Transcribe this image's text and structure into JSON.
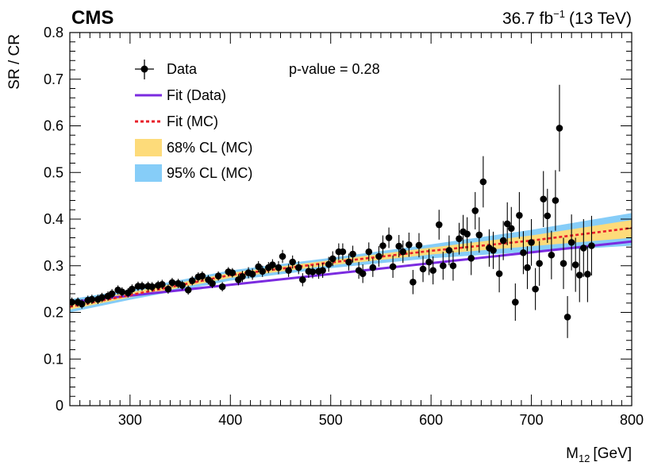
{
  "chart_data": {
    "type": "scatter",
    "experiment": "CMS",
    "lumi_label": "36.7 fb",
    "lumi_exp": "−1",
    "energy_label": "(13 TeV)",
    "xlabel_main": "M",
    "xlabel_sub": "12",
    "xlabel_unit": "[GeV]",
    "ylabel": "SR / CR",
    "xlim": [
      240,
      800
    ],
    "ylim": [
      0,
      0.8
    ],
    "xticks": [
      300,
      400,
      500,
      600,
      700,
      800
    ],
    "yticks": [
      0,
      0.1,
      0.2,
      0.3,
      0.4,
      0.5,
      0.6,
      0.7,
      0.8
    ],
    "pvalue_text": "p-value = 0.28",
    "legend": {
      "data": "Data",
      "fit_data": "Fit (Data)",
      "fit_mc": "Fit (MC)",
      "cl68": "68% CL (MC)",
      "cl95": "95% CL (MC)"
    },
    "colors": {
      "fit_data": "#7b2be0",
      "fit_mc": "#e8202a",
      "cl68": "#fddb7a",
      "cl95": "#86cdf8",
      "data": "#000000"
    },
    "fit_data": {
      "x": [
        240,
        800
      ],
      "y": [
        0.222,
        0.352
      ]
    },
    "fit_mc": {
      "x": [
        240,
        300,
        400,
        500,
        600,
        700,
        800
      ],
      "y": [
        0.212,
        0.237,
        0.28,
        0.307,
        0.332,
        0.354,
        0.381
      ]
    },
    "band95": {
      "x": [
        240,
        300,
        400,
        500,
        600,
        700,
        800
      ],
      "lo": [
        0.2,
        0.227,
        0.268,
        0.295,
        0.316,
        0.33,
        0.343
      ],
      "hi": [
        0.228,
        0.249,
        0.29,
        0.317,
        0.346,
        0.377,
        0.413
      ]
    },
    "band68": {
      "x": [
        240,
        300,
        400,
        500,
        600,
        700,
        800
      ],
      "lo": [
        0.206,
        0.232,
        0.274,
        0.301,
        0.324,
        0.342,
        0.36
      ],
      "hi": [
        0.222,
        0.243,
        0.285,
        0.312,
        0.339,
        0.365,
        0.398
      ]
    },
    "points": [
      {
        "x": 242,
        "y": 0.222,
        "e": 0.01
      },
      {
        "x": 248,
        "y": 0.222,
        "e": 0.01
      },
      {
        "x": 252,
        "y": 0.218,
        "e": 0.01
      },
      {
        "x": 258,
        "y": 0.226,
        "e": 0.01
      },
      {
        "x": 262,
        "y": 0.228,
        "e": 0.01
      },
      {
        "x": 268,
        "y": 0.228,
        "e": 0.01
      },
      {
        "x": 272,
        "y": 0.232,
        "e": 0.01
      },
      {
        "x": 278,
        "y": 0.235,
        "e": 0.01
      },
      {
        "x": 282,
        "y": 0.24,
        "e": 0.01
      },
      {
        "x": 288,
        "y": 0.248,
        "e": 0.01
      },
      {
        "x": 292,
        "y": 0.244,
        "e": 0.01
      },
      {
        "x": 298,
        "y": 0.242,
        "e": 0.01
      },
      {
        "x": 302,
        "y": 0.25,
        "e": 0.01
      },
      {
        "x": 308,
        "y": 0.256,
        "e": 0.01
      },
      {
        "x": 312,
        "y": 0.256,
        "e": 0.01
      },
      {
        "x": 318,
        "y": 0.256,
        "e": 0.01
      },
      {
        "x": 322,
        "y": 0.255,
        "e": 0.01
      },
      {
        "x": 328,
        "y": 0.258,
        "e": 0.01
      },
      {
        "x": 332,
        "y": 0.26,
        "e": 0.01
      },
      {
        "x": 338,
        "y": 0.25,
        "e": 0.01
      },
      {
        "x": 342,
        "y": 0.264,
        "e": 0.01
      },
      {
        "x": 348,
        "y": 0.262,
        "e": 0.01
      },
      {
        "x": 352,
        "y": 0.258,
        "e": 0.01
      },
      {
        "x": 358,
        "y": 0.248,
        "e": 0.01
      },
      {
        "x": 362,
        "y": 0.268,
        "e": 0.01
      },
      {
        "x": 368,
        "y": 0.276,
        "e": 0.01
      },
      {
        "x": 372,
        "y": 0.278,
        "e": 0.01
      },
      {
        "x": 378,
        "y": 0.27,
        "e": 0.01
      },
      {
        "x": 382,
        "y": 0.262,
        "e": 0.01
      },
      {
        "x": 388,
        "y": 0.278,
        "e": 0.01
      },
      {
        "x": 392,
        "y": 0.255,
        "e": 0.01
      },
      {
        "x": 398,
        "y": 0.287,
        "e": 0.01
      },
      {
        "x": 402,
        "y": 0.285,
        "e": 0.01
      },
      {
        "x": 408,
        "y": 0.27,
        "e": 0.012
      },
      {
        "x": 412,
        "y": 0.277,
        "e": 0.012
      },
      {
        "x": 418,
        "y": 0.285,
        "e": 0.012
      },
      {
        "x": 422,
        "y": 0.282,
        "e": 0.012
      },
      {
        "x": 428,
        "y": 0.298,
        "e": 0.012
      },
      {
        "x": 432,
        "y": 0.288,
        "e": 0.012
      },
      {
        "x": 438,
        "y": 0.296,
        "e": 0.012
      },
      {
        "x": 442,
        "y": 0.302,
        "e": 0.012
      },
      {
        "x": 448,
        "y": 0.296,
        "e": 0.014
      },
      {
        "x": 452,
        "y": 0.32,
        "e": 0.014
      },
      {
        "x": 458,
        "y": 0.29,
        "e": 0.014
      },
      {
        "x": 462,
        "y": 0.308,
        "e": 0.014
      },
      {
        "x": 468,
        "y": 0.296,
        "e": 0.014
      },
      {
        "x": 472,
        "y": 0.27,
        "e": 0.014
      },
      {
        "x": 478,
        "y": 0.288,
        "e": 0.014
      },
      {
        "x": 482,
        "y": 0.287,
        "e": 0.014
      },
      {
        "x": 488,
        "y": 0.288,
        "e": 0.016
      },
      {
        "x": 492,
        "y": 0.29,
        "e": 0.016
      },
      {
        "x": 498,
        "y": 0.303,
        "e": 0.016
      },
      {
        "x": 502,
        "y": 0.315,
        "e": 0.016
      },
      {
        "x": 508,
        "y": 0.33,
        "e": 0.018
      },
      {
        "x": 512,
        "y": 0.33,
        "e": 0.018
      },
      {
        "x": 518,
        "y": 0.308,
        "e": 0.018
      },
      {
        "x": 522,
        "y": 0.325,
        "e": 0.018
      },
      {
        "x": 528,
        "y": 0.29,
        "e": 0.018
      },
      {
        "x": 532,
        "y": 0.283,
        "e": 0.02
      },
      {
        "x": 538,
        "y": 0.33,
        "e": 0.02
      },
      {
        "x": 542,
        "y": 0.296,
        "e": 0.02
      },
      {
        "x": 548,
        "y": 0.32,
        "e": 0.022
      },
      {
        "x": 552,
        "y": 0.343,
        "e": 0.022
      },
      {
        "x": 558,
        "y": 0.36,
        "e": 0.022
      },
      {
        "x": 562,
        "y": 0.298,
        "e": 0.024
      },
      {
        "x": 568,
        "y": 0.342,
        "e": 0.024
      },
      {
        "x": 572,
        "y": 0.33,
        "e": 0.024
      },
      {
        "x": 578,
        "y": 0.345,
        "e": 0.026
      },
      {
        "x": 582,
        "y": 0.265,
        "e": 0.026
      },
      {
        "x": 588,
        "y": 0.344,
        "e": 0.026
      },
      {
        "x": 592,
        "y": 0.293,
        "e": 0.028
      },
      {
        "x": 598,
        "y": 0.308,
        "e": 0.028
      },
      {
        "x": 602,
        "y": 0.29,
        "e": 0.03
      },
      {
        "x": 608,
        "y": 0.388,
        "e": 0.032
      },
      {
        "x": 612,
        "y": 0.3,
        "e": 0.03
      },
      {
        "x": 618,
        "y": 0.333,
        "e": 0.032
      },
      {
        "x": 622,
        "y": 0.3,
        "e": 0.032
      },
      {
        "x": 628,
        "y": 0.358,
        "e": 0.034
      },
      {
        "x": 632,
        "y": 0.373,
        "e": 0.036
      },
      {
        "x": 636,
        "y": 0.368,
        "e": 0.036
      },
      {
        "x": 640,
        "y": 0.316,
        "e": 0.036
      },
      {
        "x": 644,
        "y": 0.418,
        "e": 0.04
      },
      {
        "x": 648,
        "y": 0.366,
        "e": 0.038
      },
      {
        "x": 652,
        "y": 0.48,
        "e": 0.055
      },
      {
        "x": 658,
        "y": 0.338,
        "e": 0.04
      },
      {
        "x": 662,
        "y": 0.333,
        "e": 0.04
      },
      {
        "x": 668,
        "y": 0.283,
        "e": 0.04
      },
      {
        "x": 672,
        "y": 0.354,
        "e": 0.042
      },
      {
        "x": 676,
        "y": 0.39,
        "e": 0.046
      },
      {
        "x": 680,
        "y": 0.38,
        "e": 0.046
      },
      {
        "x": 684,
        "y": 0.222,
        "e": 0.04
      },
      {
        "x": 688,
        "y": 0.408,
        "e": 0.05
      },
      {
        "x": 692,
        "y": 0.328,
        "e": 0.046
      },
      {
        "x": 696,
        "y": 0.296,
        "e": 0.046
      },
      {
        "x": 700,
        "y": 0.35,
        "e": 0.05
      },
      {
        "x": 704,
        "y": 0.25,
        "e": 0.045
      },
      {
        "x": 708,
        "y": 0.305,
        "e": 0.048
      },
      {
        "x": 712,
        "y": 0.443,
        "e": 0.06
      },
      {
        "x": 716,
        "y": 0.407,
        "e": 0.058
      },
      {
        "x": 720,
        "y": 0.323,
        "e": 0.052
      },
      {
        "x": 724,
        "y": 0.44,
        "e": 0.065
      },
      {
        "x": 728,
        "y": 0.595,
        "e": 0.093
      },
      {
        "x": 732,
        "y": 0.305,
        "e": 0.055
      },
      {
        "x": 736,
        "y": 0.19,
        "e": 0.045
      },
      {
        "x": 740,
        "y": 0.35,
        "e": 0.06
      },
      {
        "x": 744,
        "y": 0.302,
        "e": 0.058
      },
      {
        "x": 748,
        "y": 0.28,
        "e": 0.058
      },
      {
        "x": 752,
        "y": 0.338,
        "e": 0.062
      },
      {
        "x": 756,
        "y": 0.282,
        "e": 0.06
      },
      {
        "x": 760,
        "y": 0.343,
        "e": 0.064
      }
    ]
  }
}
